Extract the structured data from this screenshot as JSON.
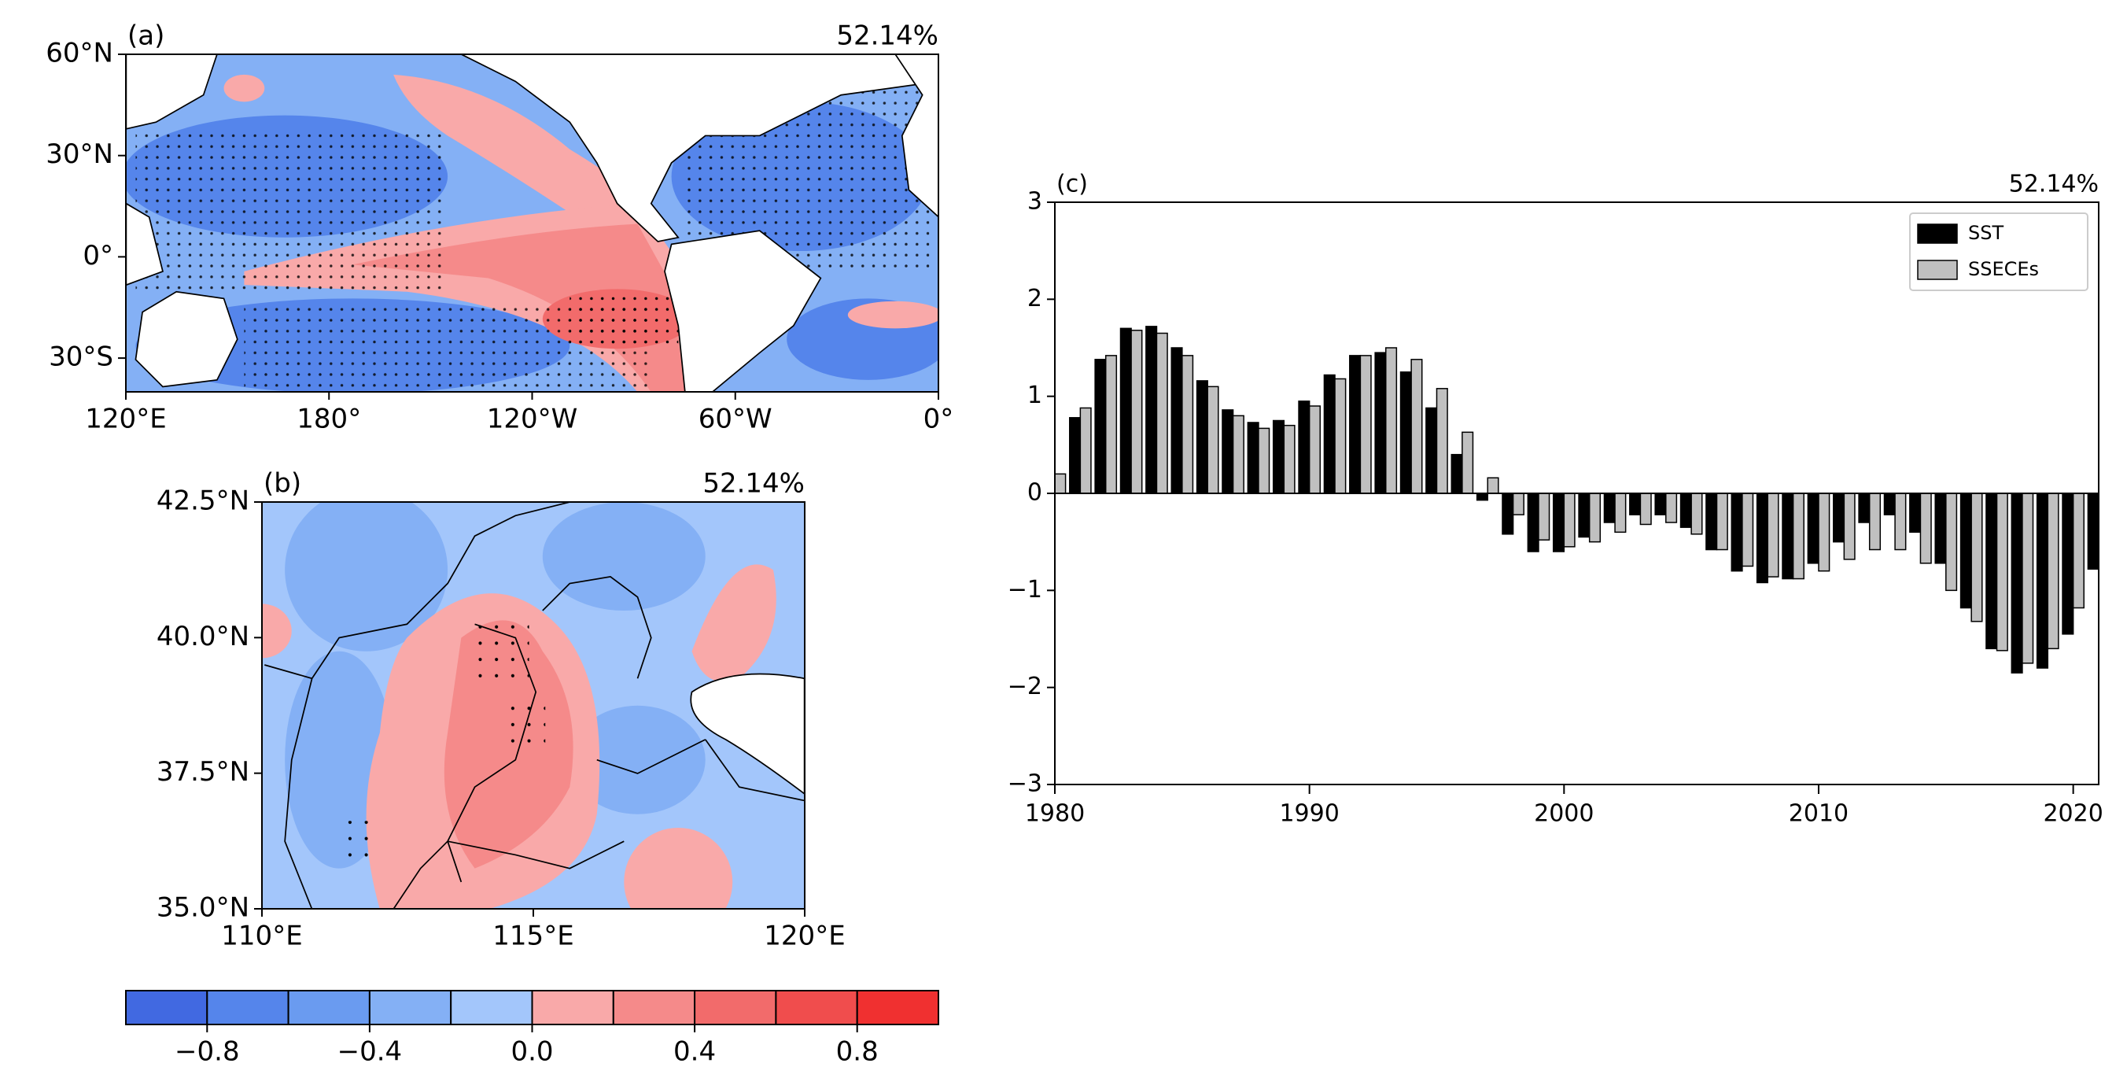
{
  "chart_data": [
    {
      "type": "map",
      "title": "(a)",
      "annotation": "52.14%",
      "xlim": [
        120,
        360
      ],
      "ylim": [
        -40,
        60
      ],
      "xticks": [
        {
          "value": 120,
          "label": "120°E"
        },
        {
          "value": 180,
          "label": "180°"
        },
        {
          "value": 240,
          "label": "120°W"
        },
        {
          "value": 300,
          "label": "60°W"
        },
        {
          "value": 360,
          "label": "0°"
        }
      ],
      "yticks": [
        {
          "value": -30,
          "label": "30°S"
        },
        {
          "value": 0,
          "label": "0°"
        },
        {
          "value": 30,
          "label": "30°N"
        },
        {
          "value": 60,
          "label": "60°N"
        }
      ]
    },
    {
      "type": "map",
      "title": "(b)",
      "annotation": "52.14%",
      "xlim": [
        110,
        120
      ],
      "ylim": [
        35,
        42.5
      ],
      "xticks": [
        {
          "value": 110,
          "label": "110°E"
        },
        {
          "value": 115,
          "label": "115°E"
        },
        {
          "value": 120,
          "label": "120°E"
        }
      ],
      "yticks": [
        {
          "value": 35,
          "label": "35.0°N"
        },
        {
          "value": 37.5,
          "label": "37.5°N"
        },
        {
          "value": 40,
          "label": "40.0°N"
        },
        {
          "value": 42.5,
          "label": "42.5°N"
        }
      ]
    },
    {
      "type": "bar",
      "title": "(c)",
      "annotation": "52.14%",
      "x": [
        1980,
        1981,
        1982,
        1983,
        1984,
        1985,
        1986,
        1987,
        1988,
        1989,
        1990,
        1991,
        1992,
        1993,
        1994,
        1995,
        1996,
        1997,
        1998,
        1999,
        2000,
        2001,
        2002,
        2003,
        2004,
        2005,
        2006,
        2007,
        2008,
        2009,
        2010,
        2011,
        2012,
        2013,
        2014,
        2015,
        2016,
        2017,
        2018,
        2019,
        2020,
        2021
      ],
      "series": [
        {
          "name": "SST",
          "color": "#000000",
          "values": [
            null,
            0.78,
            1.38,
            1.7,
            1.72,
            1.5,
            1.16,
            0.86,
            0.73,
            0.75,
            0.95,
            1.22,
            1.42,
            1.45,
            1.25,
            0.88,
            0.4,
            -0.07,
            -0.42,
            -0.6,
            -0.6,
            -0.45,
            -0.3,
            -0.22,
            -0.22,
            -0.35,
            -0.58,
            -0.8,
            -0.92,
            -0.88,
            -0.72,
            -0.5,
            -0.3,
            -0.22,
            -0.4,
            -0.72,
            -1.18,
            -1.6,
            -1.85,
            -1.8,
            -1.45,
            -0.78
          ]
        },
        {
          "name": "SSECEs",
          "color": "#c0c0c0",
          "values": [
            0.2,
            0.88,
            1.42,
            1.68,
            1.65,
            1.42,
            1.1,
            0.8,
            0.67,
            0.7,
            0.9,
            1.18,
            1.42,
            1.5,
            1.38,
            1.08,
            0.63,
            0.16,
            -0.22,
            -0.48,
            -0.55,
            -0.5,
            -0.4,
            -0.32,
            -0.3,
            -0.42,
            -0.58,
            -0.75,
            -0.86,
            -0.88,
            -0.8,
            -0.68,
            -0.58,
            -0.58,
            -0.72,
            -1.0,
            -1.32,
            -1.62,
            -1.75,
            -1.6,
            -1.18,
            null
          ]
        }
      ],
      "xlim": [
        1980,
        2021
      ],
      "ylim": [
        -3,
        3
      ],
      "xticks": [
        1980,
        1990,
        2000,
        2010,
        2020
      ],
      "yticks": [
        {
          "value": -3,
          "label": "−3"
        },
        {
          "value": -2,
          "label": "−2"
        },
        {
          "value": -1,
          "label": "−1"
        },
        0,
        1,
        2,
        3
      ],
      "legend": "upper right"
    },
    {
      "type": "colorbar",
      "levels": [
        -1,
        -0.8,
        -0.6,
        -0.4,
        -0.2,
        0,
        0.2,
        0.4,
        0.6,
        0.8,
        1
      ],
      "colors": [
        "#4169e1",
        "#5585eb",
        "#6a9bf0",
        "#84b0f5",
        "#a3c6fb",
        "#f9a9a9",
        "#f58a8a",
        "#f26b6b",
        "#f04d4d",
        "#f03030"
      ],
      "xlim": [
        -1,
        1
      ],
      "xticks": [
        {
          "value": -0.8,
          "label": "−0.8"
        },
        {
          "value": -0.4,
          "label": "−0.4"
        },
        {
          "value": 0,
          "label": "0.0"
        },
        {
          "value": 0.4,
          "label": "0.4"
        },
        {
          "value": 0.8,
          "label": "0.8"
        }
      ]
    }
  ]
}
